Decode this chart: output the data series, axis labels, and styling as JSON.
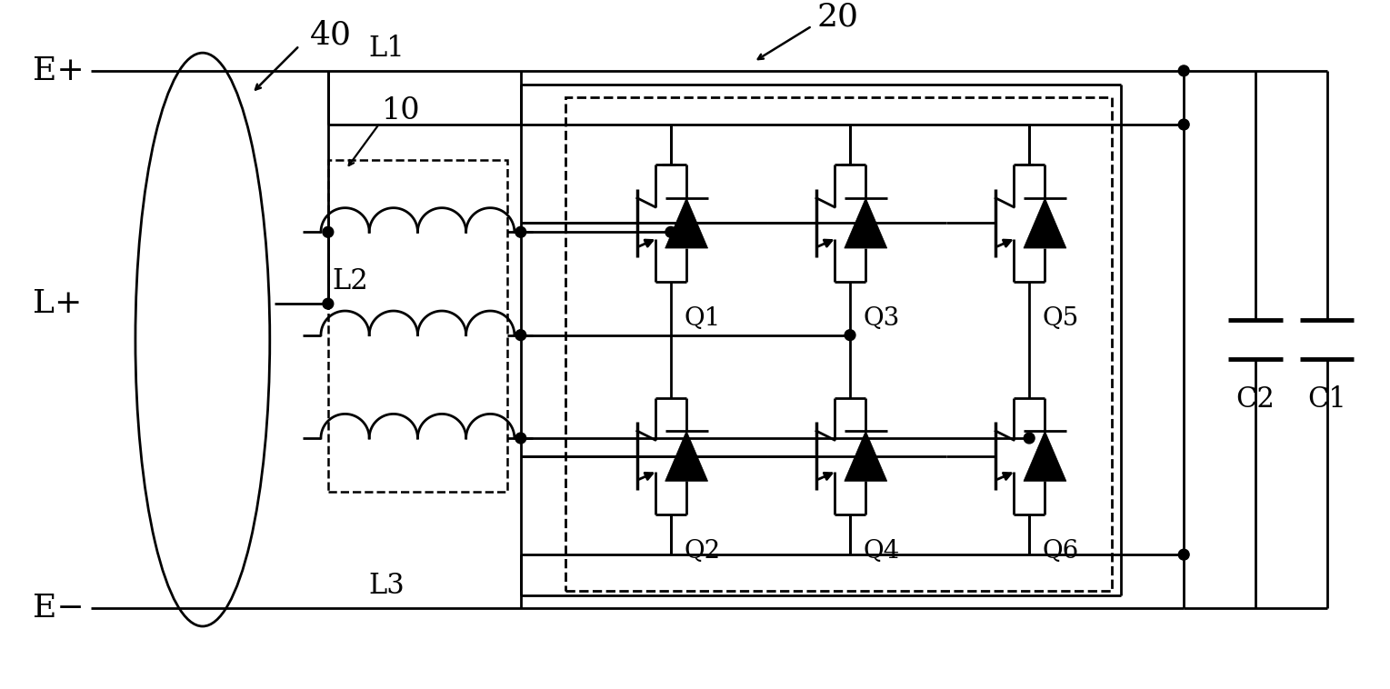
{
  "bg_color": "#ffffff",
  "lc": "#000000",
  "fig_w": 15.29,
  "fig_h": 7.58,
  "E_plus": "E+",
  "E_minus": "E−",
  "L_plus": "L+",
  "L1": "L1",
  "L2": "L2",
  "L3": "L3",
  "n10": "10",
  "n20": "20",
  "n40": "40",
  "Q1": "Q1",
  "Q2": "Q2",
  "Q3": "Q3",
  "Q4": "Q4",
  "Q5": "Q5",
  "Q6": "Q6",
  "C1": "C1",
  "C2": "C2"
}
